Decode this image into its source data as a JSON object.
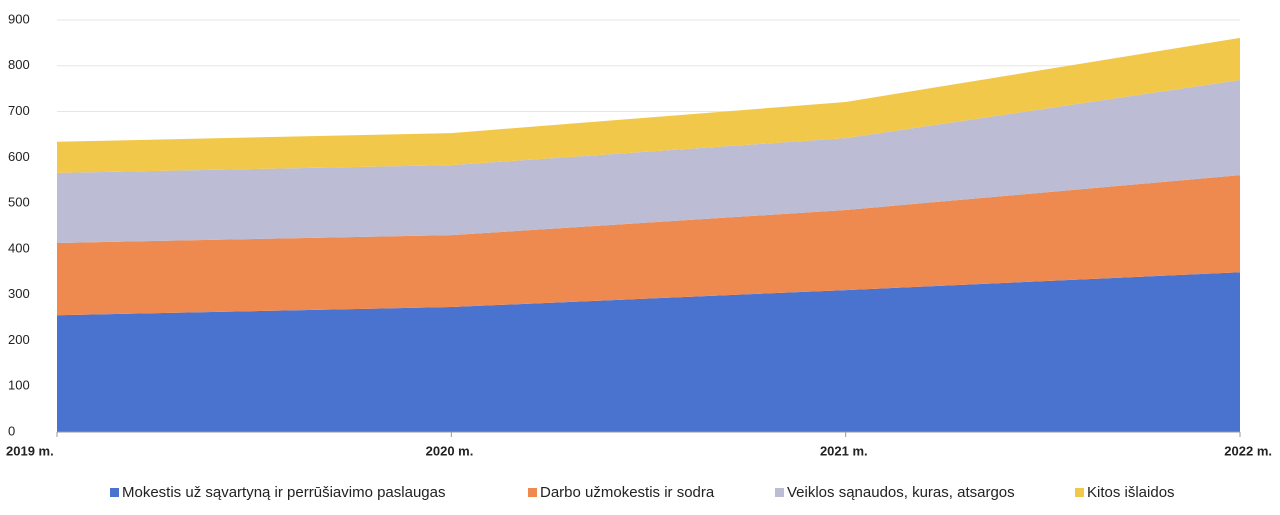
{
  "chart_data": {
    "type": "stacked_area",
    "categories": [
      "2019 m.",
      "2020 m.",
      "2021 m.",
      "2022 m."
    ],
    "series": [
      {
        "name": "Mokestis už sąvartyną ir perrūšiavimo paslaugas",
        "color": "#4a72cf",
        "values": [
          255,
          273,
          310,
          349
        ]
      },
      {
        "name": "Darbo užmokestis ir sodra",
        "color": "#ee8a50",
        "values": [
          158,
          157,
          175,
          212
        ]
      },
      {
        "name": "Veiklos sąnaudos, kuras, atsargos",
        "color": "#bcbcd4",
        "values": [
          153,
          153,
          157,
          208
        ]
      },
      {
        "name": "Kitos išlaidos",
        "color": "#f2c84a",
        "values": [
          68,
          70,
          79,
          92
        ]
      }
    ],
    "ylim": [
      0,
      900
    ],
    "yticks": [
      0,
      100,
      200,
      300,
      400,
      500,
      600,
      700,
      800,
      900
    ],
    "grid": true,
    "legend": "bottom"
  }
}
